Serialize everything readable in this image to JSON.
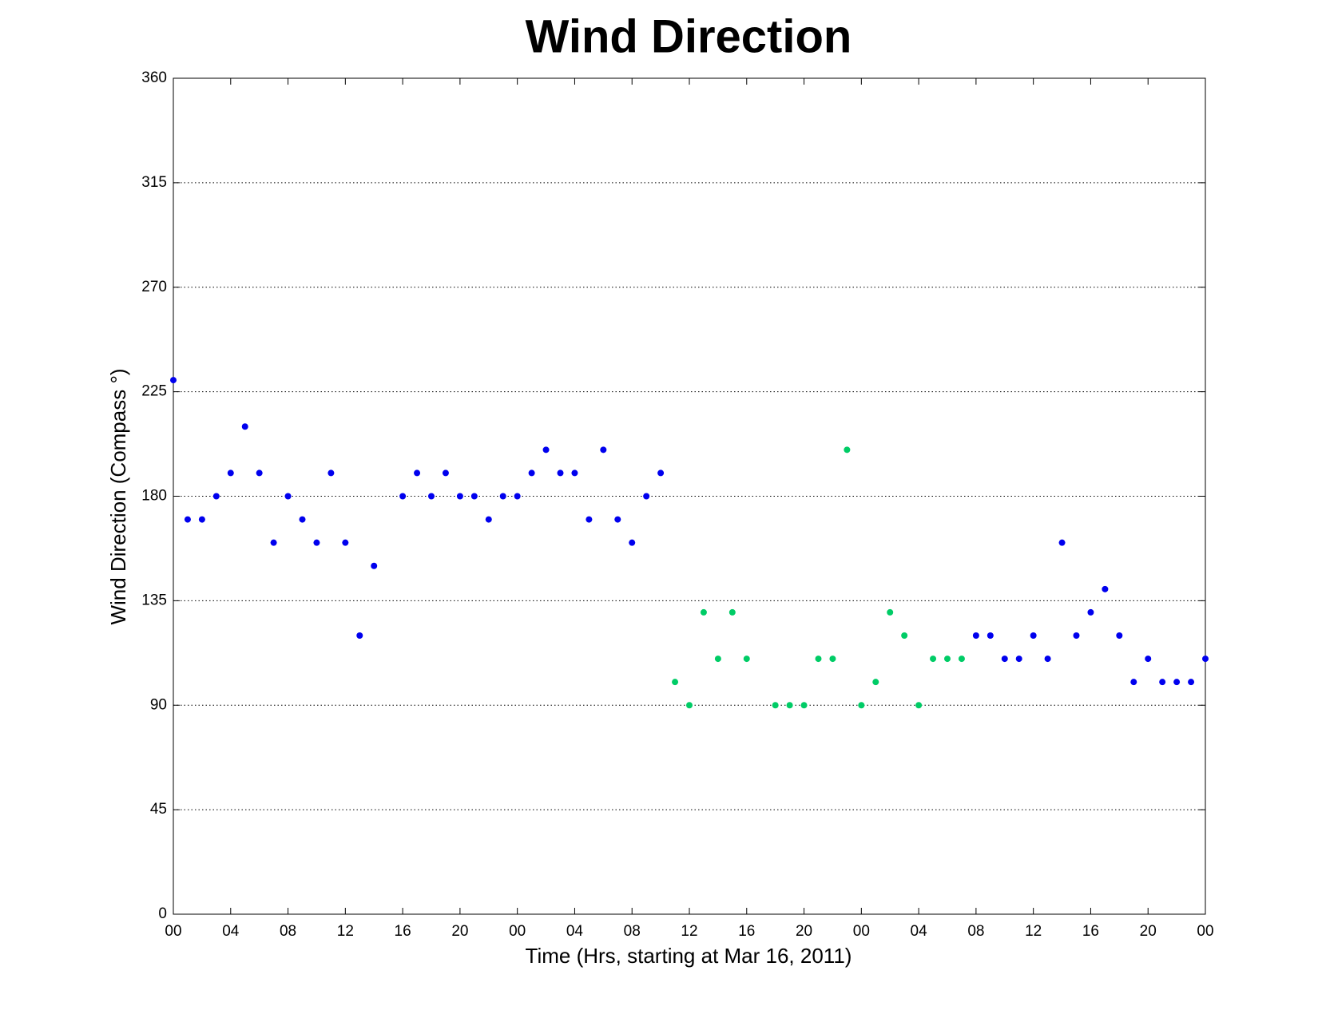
{
  "chart_data": {
    "type": "scatter",
    "title": "Wind Direction",
    "x_label": "Time (Hrs, starting at Mar 16, 2011)",
    "y_label": "Wind Direction (Compass °)",
    "series": [
      {
        "color": "#0000ee",
        "x": [
          0,
          1,
          2,
          3,
          4,
          5,
          6,
          7,
          8,
          9,
          10,
          11,
          12,
          13,
          14,
          16,
          17,
          18,
          19,
          20,
          21,
          22,
          23,
          24,
          25,
          26,
          27,
          28,
          29,
          30,
          31,
          32,
          33,
          34,
          56,
          57,
          58,
          59,
          60,
          61,
          62,
          63,
          64,
          65,
          66,
          67,
          68,
          69,
          70,
          71,
          72
        ],
        "values": [
          230,
          170,
          170,
          180,
          190,
          210,
          190,
          160,
          180,
          170,
          160,
          190,
          160,
          120,
          150,
          180,
          190,
          180,
          190,
          180,
          180,
          170,
          180,
          180,
          190,
          200,
          190,
          190,
          170,
          200,
          170,
          160,
          180,
          190,
          120,
          120,
          110,
          110,
          120,
          110,
          160,
          120,
          130,
          140,
          120,
          100,
          110,
          100,
          100,
          100,
          110
        ]
      },
      {
        "color": "#00cc66",
        "x": [
          35,
          36,
          37,
          38,
          39,
          40,
          42,
          43,
          44,
          45,
          46,
          47,
          48,
          49,
          50,
          51,
          52,
          53,
          54,
          55
        ],
        "values": [
          100,
          90,
          130,
          110,
          130,
          110,
          90,
          90,
          90,
          110,
          110,
          200,
          90,
          100,
          130,
          120,
          90,
          110,
          110,
          110
        ]
      }
    ],
    "xlim": [
      0,
      72
    ],
    "xticks": [
      {
        "value": 0,
        "label": "00"
      },
      {
        "value": 4,
        "label": "04"
      },
      {
        "value": 8,
        "label": "08"
      },
      {
        "value": 12,
        "label": "12"
      },
      {
        "value": 16,
        "label": "16"
      },
      {
        "value": 20,
        "label": "20"
      },
      {
        "value": 24,
        "label": "00"
      },
      {
        "value": 28,
        "label": "04"
      },
      {
        "value": 32,
        "label": "08"
      },
      {
        "value": 36,
        "label": "12"
      },
      {
        "value": 40,
        "label": "16"
      },
      {
        "value": 44,
        "label": "20"
      },
      {
        "value": 48,
        "label": "00"
      },
      {
        "value": 52,
        "label": "04"
      },
      {
        "value": 56,
        "label": "08"
      },
      {
        "value": 60,
        "label": "12"
      },
      {
        "value": 64,
        "label": "16"
      },
      {
        "value": 68,
        "label": "20"
      },
      {
        "value": 72,
        "label": "00"
      }
    ],
    "ylim": [
      0,
      360
    ],
    "yticks": [
      0,
      45,
      90,
      135,
      180,
      225,
      270,
      315,
      360
    ],
    "grid": true
  }
}
